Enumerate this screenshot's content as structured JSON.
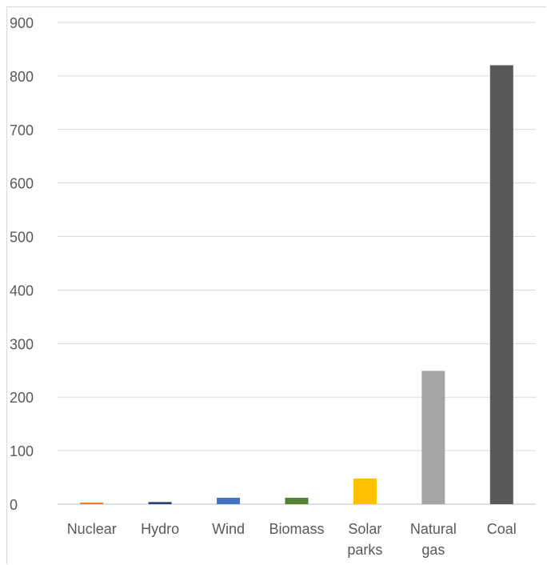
{
  "chart_data": {
    "type": "bar",
    "categories": [
      [
        "Nuclear"
      ],
      [
        "Hydro"
      ],
      [
        "Wind"
      ],
      [
        "Biomass"
      ],
      [
        "Solar",
        "parks"
      ],
      [
        "Natural",
        "gas"
      ],
      [
        "Coal"
      ]
    ],
    "values": [
      3,
      4,
      12,
      12,
      48,
      249,
      820
    ],
    "colors": [
      "#ED7D31",
      "#264478",
      "#4472C4",
      "#548235",
      "#FFC000",
      "#A5A5A5",
      "#595959"
    ],
    "title": "",
    "xlabel": "",
    "ylabel": "",
    "ylim": [
      0,
      900
    ],
    "yticks": [
      0,
      100,
      200,
      300,
      400,
      500,
      600,
      700,
      800,
      900
    ],
    "grid": true,
    "legend": "none"
  }
}
